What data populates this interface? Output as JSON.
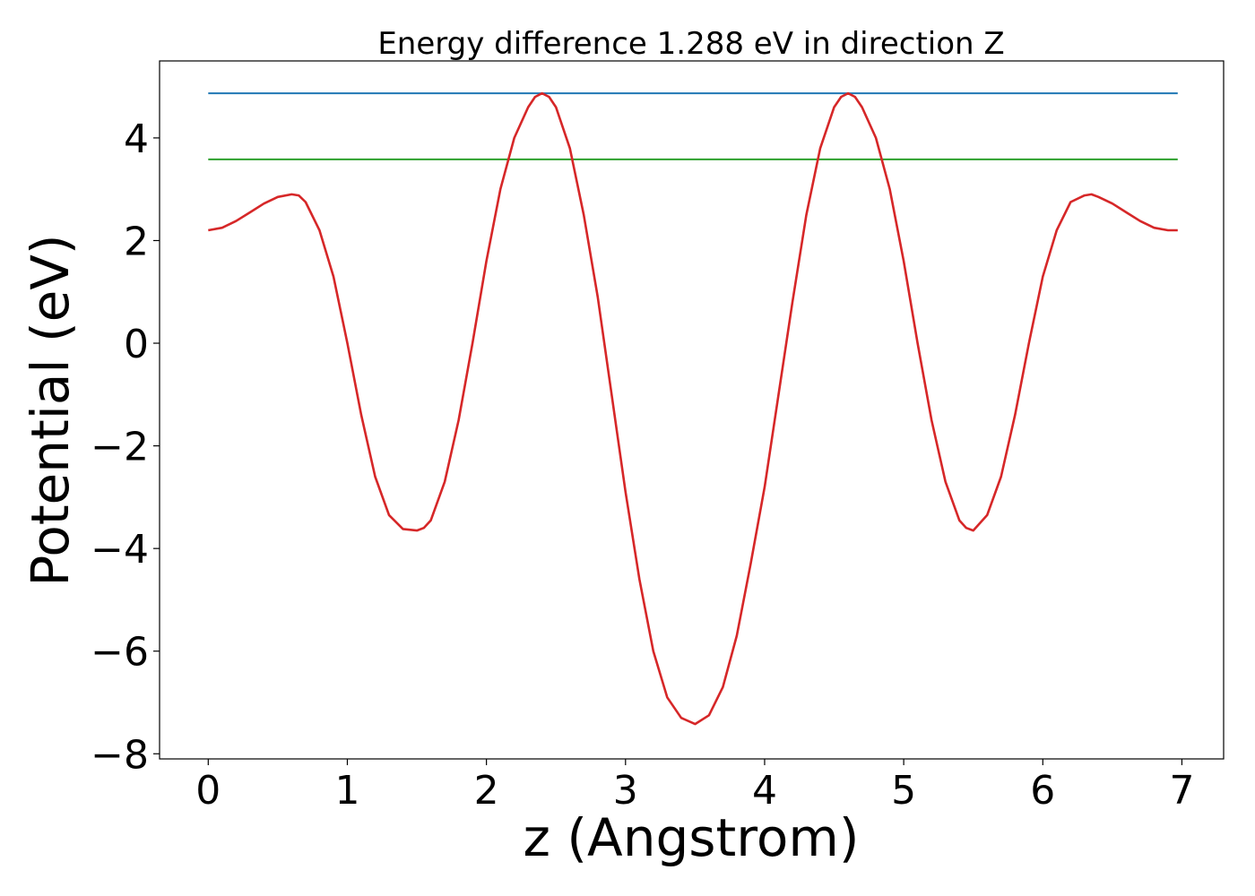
{
  "chart_data": {
    "type": "line",
    "title": "Energy difference 1.288 eV in direction Z",
    "xlabel": "z (Angstrom)",
    "ylabel": "Potential (eV)",
    "xlim": [
      -0.35,
      7.3
    ],
    "ylim": [
      -8.1,
      5.5
    ],
    "xticks": [
      0,
      1,
      2,
      3,
      4,
      5,
      6,
      7
    ],
    "yticks": [
      -8,
      -6,
      -4,
      -2,
      0,
      2,
      4
    ],
    "x_tick_labels": [
      "0",
      "1",
      "2",
      "3",
      "4",
      "5",
      "6",
      "7"
    ],
    "y_tick_labels": [
      "−8",
      "−6",
      "−4",
      "−2",
      "0",
      "2",
      "4"
    ],
    "grid": false,
    "series": [
      {
        "color": "#d62728",
        "x": [
          0.0,
          0.1,
          0.2,
          0.3,
          0.4,
          0.5,
          0.6,
          0.65,
          0.7,
          0.8,
          0.9,
          1.0,
          1.1,
          1.2,
          1.3,
          1.4,
          1.5,
          1.55,
          1.6,
          1.7,
          1.8,
          1.9,
          2.0,
          2.1,
          2.2,
          2.3,
          2.35,
          2.4,
          2.45,
          2.5,
          2.6,
          2.7,
          2.8,
          2.9,
          3.0,
          3.1,
          3.2,
          3.3,
          3.4,
          3.5,
          3.6,
          3.7,
          3.8,
          3.9,
          4.0,
          4.1,
          4.2,
          4.3,
          4.4,
          4.5,
          4.55,
          4.6,
          4.65,
          4.7,
          4.8,
          4.9,
          5.0,
          5.1,
          5.2,
          5.3,
          5.4,
          5.45,
          5.5,
          5.6,
          5.7,
          5.8,
          5.9,
          6.0,
          6.1,
          6.2,
          6.3,
          6.35,
          6.4,
          6.5,
          6.6,
          6.7,
          6.8,
          6.9,
          6.97
        ],
        "y": [
          2.2,
          2.25,
          2.38,
          2.55,
          2.72,
          2.85,
          2.9,
          2.88,
          2.75,
          2.2,
          1.3,
          0.0,
          -1.4,
          -2.6,
          -3.35,
          -3.62,
          -3.65,
          -3.6,
          -3.45,
          -2.7,
          -1.5,
          0.0,
          1.6,
          3.0,
          4.0,
          4.6,
          4.8,
          4.87,
          4.8,
          4.6,
          3.8,
          2.5,
          0.9,
          -1.0,
          -2.9,
          -4.6,
          -6.0,
          -6.9,
          -7.3,
          -7.42,
          -7.25,
          -6.7,
          -5.7,
          -4.3,
          -2.8,
          -1.0,
          0.8,
          2.5,
          3.8,
          4.6,
          4.8,
          4.87,
          4.8,
          4.6,
          4.0,
          3.0,
          1.6,
          0.0,
          -1.5,
          -2.7,
          -3.45,
          -3.6,
          -3.65,
          -3.35,
          -2.6,
          -1.4,
          0.0,
          1.3,
          2.2,
          2.75,
          2.88,
          2.9,
          2.85,
          2.72,
          2.55,
          2.38,
          2.25,
          2.2,
          2.2
        ]
      },
      {
        "color": "#1f77b4",
        "x": [
          0.0,
          6.97
        ],
        "y": [
          4.87,
          4.87
        ]
      },
      {
        "color": "#2ca02c",
        "x": [
          0.0,
          6.97
        ],
        "y": [
          3.582,
          3.582
        ]
      }
    ]
  }
}
